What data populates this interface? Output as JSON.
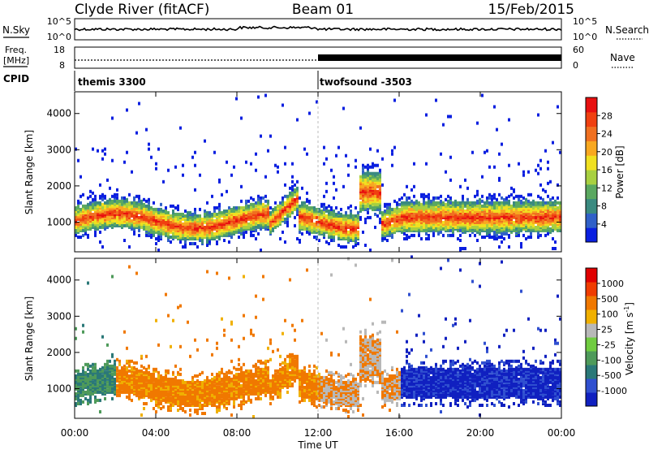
{
  "header": {
    "station": "Clyde River (fitACF)",
    "beam": "Beam 01",
    "date": "15/Feb/2015"
  },
  "strip": {
    "nsky_label": "N.Sky",
    "nsearch_label": "N.Search",
    "noise_ticks_left": [
      "10^5",
      "10^0"
    ],
    "noise_ticks_right": [
      "10^5",
      "10^0"
    ],
    "freq_label_1": "Freq.",
    "freq_label_2": "[MHz]",
    "freq_ticks": [
      "18",
      "8"
    ],
    "nave_label": "Nave",
    "nave_ticks": [
      "60",
      "0"
    ],
    "cpid_label": "CPID",
    "cpid_segments": [
      {
        "label": "themis 3300",
        "start_hour": 0
      },
      {
        "label": "twofsound -3503",
        "start_hour": 12
      }
    ]
  },
  "chart_data": [
    {
      "type": "heatmap",
      "name": "power",
      "ylabel": "Slant Range [km]",
      "yticks": [
        1000,
        2000,
        3000,
        4000
      ],
      "ylim": [
        180,
        4600
      ],
      "xlim": [
        0,
        24
      ],
      "colorbar_label": "Power [dB]",
      "colorbar_ticks": [
        "4",
        "8",
        "12",
        "16",
        "20",
        "24",
        "28"
      ],
      "colorbar_colors": [
        "#0a1fe0",
        "#3060c8",
        "#3a8a80",
        "#5aa860",
        "#a8d040",
        "#f0e020",
        "#f8a820",
        "#f07020",
        "#f04010",
        "#e81010"
      ]
    },
    {
      "type": "heatmap",
      "name": "velocity",
      "ylabel": "Slant Range [km]",
      "yticks": [
        1000,
        2000,
        3000,
        4000
      ],
      "ylim": [
        180,
        4600
      ],
      "xlim": [
        0,
        24
      ],
      "xlabel": "Time UT",
      "xticks": [
        "00:00",
        "04:00",
        "08:00",
        "12:00",
        "16:00",
        "20:00",
        "00:00"
      ],
      "colorbar_label": "Velocity [m s",
      "colorbar_label_sup": "-1",
      "colorbar_label_end": "]",
      "colorbar_ticks": [
        "1000",
        "500",
        "100",
        "25",
        "-25",
        "-100",
        "-500",
        "-1000"
      ],
      "colorbar_colors": [
        "#1020c0",
        "#3050d0",
        "#2a7878",
        "#4e9a5a",
        "#70cc40",
        "#b8b8b8",
        "#f0b000",
        "#f07800",
        "#f03c00",
        "#e00000"
      ]
    }
  ]
}
